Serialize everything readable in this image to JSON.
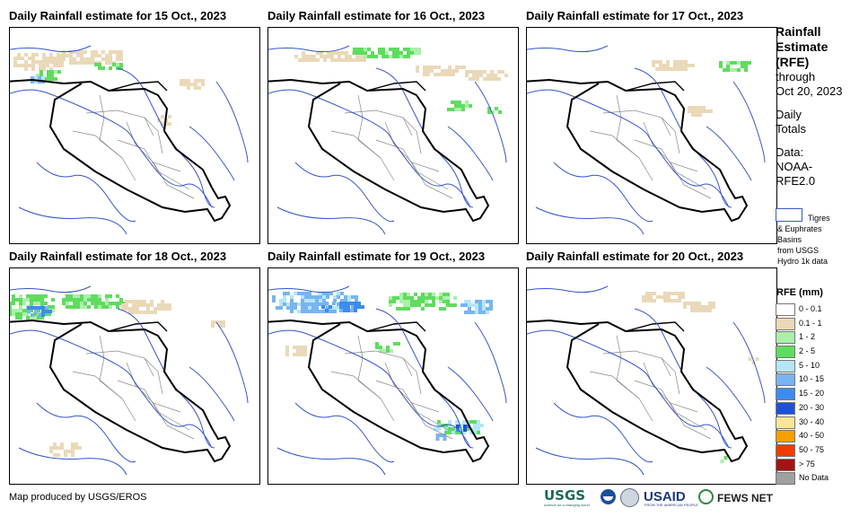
{
  "panels": [
    {
      "title": "Daily Rainfall estimate for 15 Oct., 2023"
    },
    {
      "title": "Daily Rainfall estimate for 16 Oct., 2023"
    },
    {
      "title": "Daily Rainfall estimate for 17 Oct., 2023"
    },
    {
      "title": "Daily Rainfall estimate for 18 Oct., 2023"
    },
    {
      "title": "Daily Rainfall estimate for 19 Oct., 2023"
    },
    {
      "title": "Daily Rainfall estimate for 20 Oct., 2023"
    }
  ],
  "legend": {
    "title_lines": [
      "Rainfall",
      "Estimate",
      "(RFE)"
    ],
    "through": "through",
    "date": "Oct 20, 2023",
    "daily": "Daily",
    "totals": "Totals",
    "data_label": "Data:",
    "source_1": "NOAA-",
    "source_2": "RFE2.0",
    "basin_text": "Tigres & Euphrates Basins from USGS Hydro 1k data",
    "basin_text_lines": [
      "Tigres",
      "& Euphrates",
      "Basins",
      "from USGS",
      "Hydro 1k data"
    ],
    "rfe_header": "RFE (mm)",
    "classes": [
      {
        "label": "0 - 0.1",
        "color": "#ffffff"
      },
      {
        "label": "0.1 - 1",
        "color": "#ead9b8"
      },
      {
        "label": "1 - 2",
        "color": "#aaf0aa"
      },
      {
        "label": "2 - 5",
        "color": "#5fdc5f"
      },
      {
        "label": "5 - 10",
        "color": "#b4e6f5"
      },
      {
        "label": "10 - 15",
        "color": "#78b4f0"
      },
      {
        "label": "15 - 20",
        "color": "#3c8cf0"
      },
      {
        "label": "20 - 30",
        "color": "#1e50dc"
      },
      {
        "label": "30 - 40",
        "color": "#fae696"
      },
      {
        "label": "40 - 50",
        "color": "#f5a000"
      },
      {
        "label": "50 - 75",
        "color": "#f03c00"
      },
      {
        "label": "> 75",
        "color": "#a01414"
      },
      {
        "label": "No Data",
        "color": "#a0a0a0"
      }
    ]
  },
  "footer": {
    "credit": "Map produced by USGS/EROS",
    "logos": {
      "usgs": "USGS",
      "usgs_tag": "science for a changing world",
      "usaid": "USAID",
      "usaid_tag": "FROM THE AMERICAN PEOPLE",
      "fews": "FEWS NET"
    }
  },
  "colors": {
    "border": "#000000",
    "rivers": "#3355cc",
    "provinces": "#888888"
  }
}
